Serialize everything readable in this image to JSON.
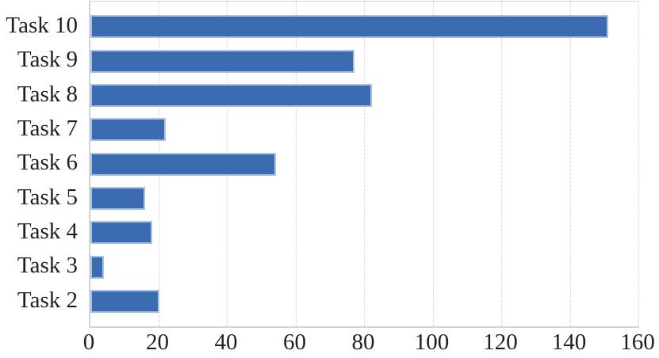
{
  "chart_data": {
    "type": "bar",
    "orientation": "horizontal",
    "title": "",
    "xlabel": "",
    "ylabel": "",
    "categories": [
      "Task 10",
      "Task 9",
      "Task 8",
      "Task 7",
      "Task 6",
      "Task 5",
      "Task 4",
      "Task 3",
      "Task 2"
    ],
    "values": [
      151,
      77,
      82,
      22,
      54,
      16,
      18,
      4,
      20
    ],
    "xlim": [
      0,
      160
    ],
    "x_ticks": [
      0,
      20,
      40,
      60,
      80,
      100,
      120,
      140,
      160
    ],
    "grid": "vertical-dashed",
    "legend": "none",
    "colors": {
      "bar_fill": "#3a6bb1",
      "bar_border": "#a9c2e2",
      "gridline": "#d9d9d9",
      "axis_line": "#d4d4d4",
      "tick_text": "#1f1f1f"
    }
  }
}
